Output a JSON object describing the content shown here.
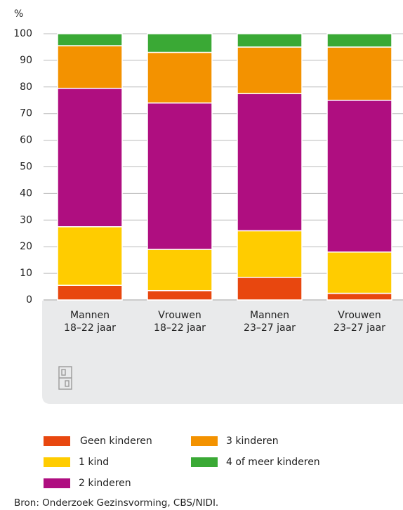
{
  "chart_data": {
    "type": "stacked_bar",
    "y_label": "%",
    "categories": [
      [
        "Mannen",
        "18–22 jaar"
      ],
      [
        "Vrouwen",
        "18–22 jaar"
      ],
      [
        "Mannen",
        "23–27 jaar"
      ],
      [
        "Vrouwen",
        "23–27 jaar"
      ]
    ],
    "series": [
      {
        "name": "Geen kinderen",
        "color": "#e8470f",
        "values": [
          5.5,
          3.5,
          8.5,
          2.5
        ]
      },
      {
        "name": "1 kind",
        "color": "#ffcc00",
        "values": [
          22,
          15.5,
          17.5,
          15.5
        ]
      },
      {
        "name": "2 kinderen",
        "color": "#af0e80",
        "values": [
          52,
          55,
          51.5,
          57
        ]
      },
      {
        "name": "3 kinderen",
        "color": "#f39200",
        "values": [
          16,
          19,
          17.5,
          20
        ]
      },
      {
        "name": "4 of meer kinderen",
        "color": "#3aa935",
        "values": [
          4.5,
          7,
          5,
          5
        ]
      }
    ],
    "ylim": [
      0,
      100
    ],
    "yticks": [
      0,
      10,
      20,
      30,
      40,
      50,
      60,
      70,
      80,
      90,
      100
    ],
    "grid": true,
    "source": "Bron: Onderzoek Gezinsvorming, CBS/NIDI."
  }
}
